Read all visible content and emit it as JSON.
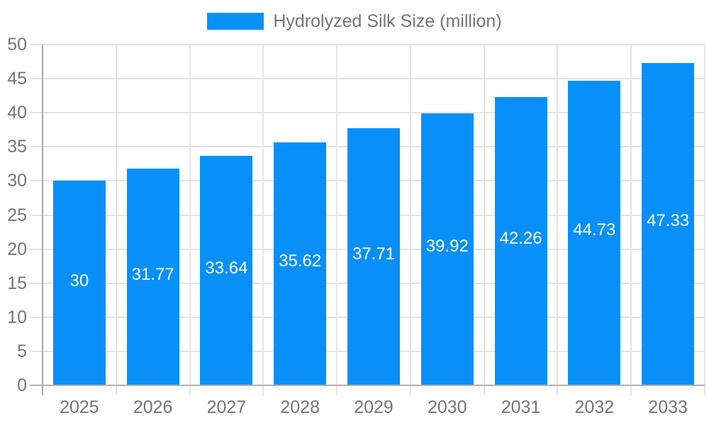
{
  "legend": {
    "label": "Hydrolyzed Silk Size (million)"
  },
  "chart_data": {
    "type": "bar",
    "title": "",
    "series_name": "Hydrolyzed Silk Size (million)",
    "categories": [
      "2025",
      "2026",
      "2027",
      "2028",
      "2029",
      "2030",
      "2031",
      "2032",
      "2033"
    ],
    "values": [
      30,
      31.77,
      33.64,
      35.62,
      37.71,
      39.92,
      42.26,
      44.73,
      47.33
    ],
    "value_labels": [
      "30",
      "31.77",
      "33.64",
      "35.62",
      "37.71",
      "39.92",
      "42.26",
      "44.73",
      "47.33"
    ],
    "xlabel": "",
    "ylabel": "",
    "ylim": [
      0,
      50
    ],
    "y_tick_step": 5,
    "y_ticks": [
      0,
      5,
      10,
      15,
      20,
      25,
      30,
      35,
      40,
      45,
      50
    ],
    "grid": true,
    "legend_position": "top",
    "colors": {
      "bar": "#0890f8",
      "grid": "#e4e4e4",
      "axis_line": "#a8a8a8",
      "baseline": "#b0b0b0",
      "tick_text": "#757575",
      "value_text": "#ffffff",
      "background": "#ffffff"
    }
  }
}
